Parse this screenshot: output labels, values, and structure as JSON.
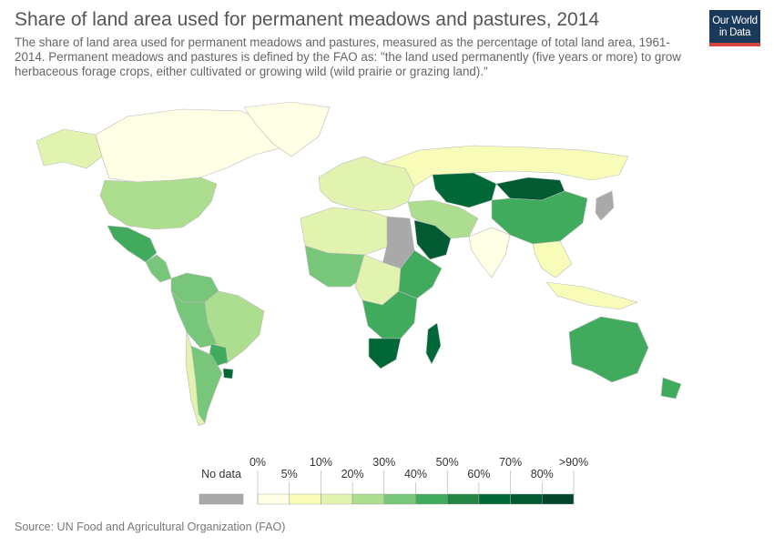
{
  "header": {
    "title": "Share of land area used for permanent meadows and pastures, 2014",
    "subtitle": "The share of land area used for permanent meadows and pastures, measured as the percentage of total land area, 1961-2014. Permanent meadows and pastures is defined by the FAO as: \"the land used permanently (five years or more) to grow herbaceous forage crops, either cultivated or growing wild (wild prairie or grazing land).\"",
    "logo_line1": "Our World",
    "logo_line2": "in Data"
  },
  "legend": {
    "no_data_label": "No data",
    "no_data_color": "#a9a9a9",
    "bins": [
      {
        "color": "#ffffe5"
      },
      {
        "color": "#f7fcb9"
      },
      {
        "color": "#e2f3b0"
      },
      {
        "color": "#addd8e"
      },
      {
        "color": "#78c679"
      },
      {
        "color": "#41ab5d"
      },
      {
        "color": "#238443"
      },
      {
        "color": "#006837"
      },
      {
        "color": "#005a32"
      },
      {
        "color": "#004529"
      }
    ],
    "upper_labels": [
      "0%",
      "10%",
      "30%",
      "50%",
      "70%",
      ">90%"
    ],
    "lower_labels": [
      "5%",
      "20%",
      "40%",
      "60%",
      "80%"
    ]
  },
  "map": {
    "ocean_color": "#ffffff",
    "regions": [
      {
        "name": "Alaska",
        "color": "#e2f3b0"
      },
      {
        "name": "Canada",
        "color": "#ffffe5"
      },
      {
        "name": "Greenland",
        "color": "#ffffe5"
      },
      {
        "name": "United States",
        "color": "#addd8e"
      },
      {
        "name": "Mexico",
        "color": "#41ab5d"
      },
      {
        "name": "Central America",
        "color": "#78c679"
      },
      {
        "name": "Colombia and Venezuela",
        "color": "#78c679"
      },
      {
        "name": "Brazil",
        "color": "#addd8e"
      },
      {
        "name": "Peru and Bolivia",
        "color": "#78c679"
      },
      {
        "name": "Paraguay",
        "color": "#41ab5d"
      },
      {
        "name": "Uruguay",
        "color": "#006837"
      },
      {
        "name": "Argentina",
        "color": "#78c679"
      },
      {
        "name": "Chile",
        "color": "#e2f3b0"
      },
      {
        "name": "Europe",
        "color": "#e2f3b0"
      },
      {
        "name": "Russia",
        "color": "#f7fcb9"
      },
      {
        "name": "Kazakhstan",
        "color": "#006837"
      },
      {
        "name": "Mongolia",
        "color": "#005a32"
      },
      {
        "name": "China",
        "color": "#41ab5d"
      },
      {
        "name": "Japan",
        "color": "#a9a9a9"
      },
      {
        "name": "Middle East",
        "color": "#addd8e"
      },
      {
        "name": "Saudi Arabia",
        "color": "#005a32"
      },
      {
        "name": "India",
        "color": "#ffffe5"
      },
      {
        "name": "Southeast Asia",
        "color": "#f7fcb9"
      },
      {
        "name": "North Africa",
        "color": "#e2f3b0"
      },
      {
        "name": "Sudan",
        "color": "#a9a9a9"
      },
      {
        "name": "West Africa",
        "color": "#78c679"
      },
      {
        "name": "Central Africa",
        "color": "#e2f3b0"
      },
      {
        "name": "East Africa",
        "color": "#41ab5d"
      },
      {
        "name": "Southern Africa",
        "color": "#41ab5d"
      },
      {
        "name": "South Africa",
        "color": "#006837"
      },
      {
        "name": "Madagascar",
        "color": "#006837"
      },
      {
        "name": "Australia",
        "color": "#41ab5d"
      },
      {
        "name": "New Zealand",
        "color": "#41ab5d"
      },
      {
        "name": "Indonesia",
        "color": "#f7fcb9"
      }
    ]
  },
  "footer": {
    "source": "Source: UN Food and Agricultural Organization (FAO)"
  }
}
